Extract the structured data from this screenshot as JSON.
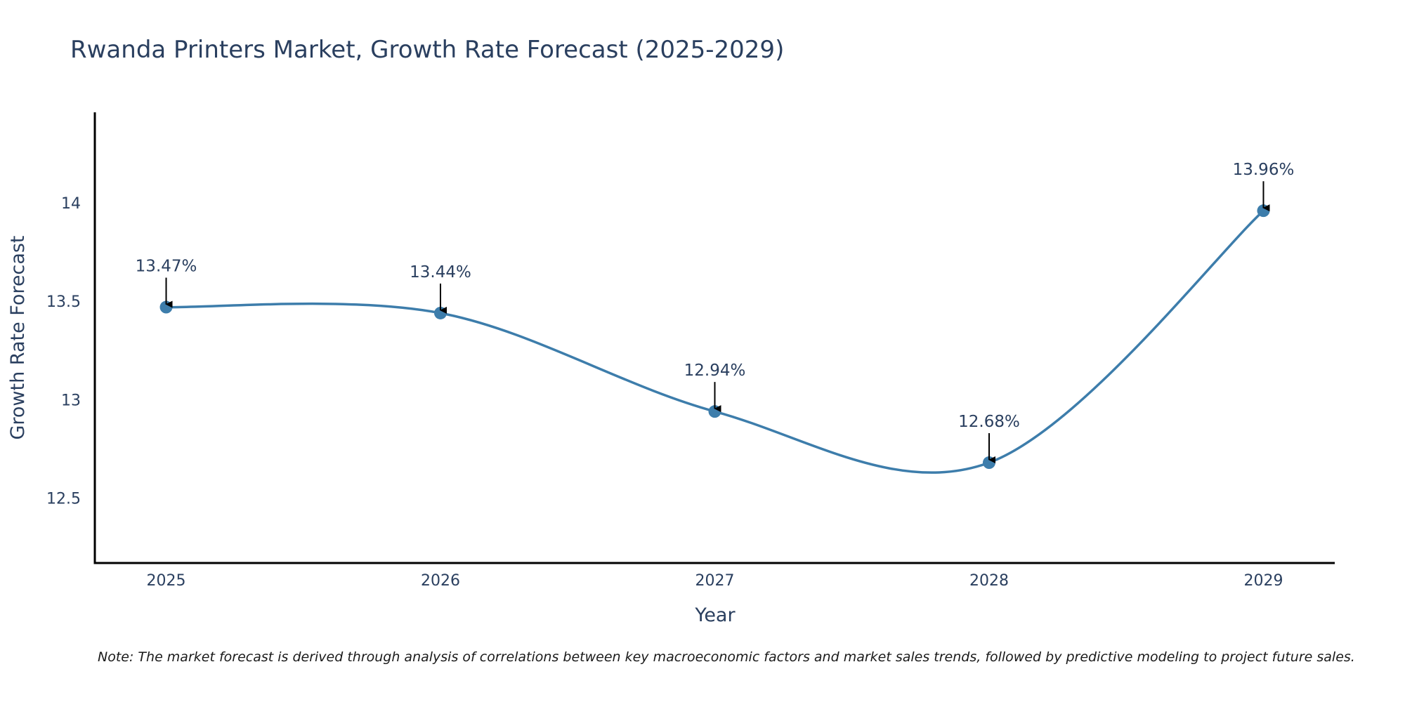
{
  "chart_data": {
    "type": "line",
    "title": "Rwanda Printers Market, Growth Rate Forecast (2025-2029)",
    "xlabel": "Year",
    "ylabel": "Growth Rate Forecast",
    "categories": [
      "2025",
      "2026",
      "2027",
      "2028",
      "2029"
    ],
    "x": [
      2025,
      2026,
      2027,
      2028,
      2029
    ],
    "series": [
      {
        "name": "Growth Rate Forecast",
        "values": [
          13.47,
          13.44,
          12.94,
          12.68,
          13.96
        ],
        "color": "#3d7dab",
        "line_shape": "spline"
      }
    ],
    "annotations": [
      "13.47%",
      "13.44%",
      "12.94%",
      "12.68%",
      "13.96%"
    ],
    "y_ticks": [
      12.5,
      13,
      13.5,
      14
    ],
    "y_tick_labels": [
      "12.5",
      "13",
      "13.5",
      "14"
    ],
    "xlim": [
      2024.74,
      2029.26
    ],
    "ylim": [
      12.17,
      14.46
    ],
    "grid": false,
    "legend": "none",
    "note": "Note: The market forecast is derived through analysis of correlations between key macroeconomic factors and market sales trends, followed by predictive modeling to project future sales."
  },
  "colors": {
    "text": "#2a3f5f",
    "line": "#3d7dab",
    "axis": "#000000",
    "arrow": "#000000"
  }
}
